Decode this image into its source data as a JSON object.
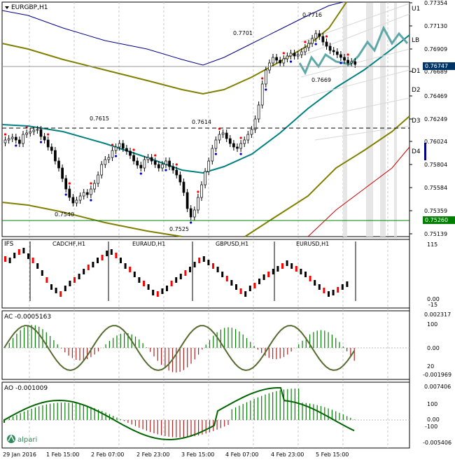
{
  "main_panel": {
    "symbol_label": "EURGBP,H1",
    "price_scale": [
      "0.77354",
      "0.77130",
      "0.76909",
      "0.76689",
      "0.76469",
      "0.76249",
      "0.76024",
      "0.75804",
      "0.75584",
      "0.75359",
      "0.75139"
    ],
    "current_price": "0.76747",
    "level_price": "0.75260",
    "level_labels": [
      "U1",
      "LB",
      "D1",
      "D2",
      "D3",
      "D4"
    ],
    "price_annotations": [
      "0.7716",
      "0.7701",
      "0.7669",
      "0.7615",
      "0.7614",
      "0.7540",
      "0.7525"
    ]
  },
  "ifs_panel": {
    "label": "IFS",
    "sub_symbols": [
      "CADCHF,H1",
      "EURAUD,H1",
      "GBPUSD,H1",
      "EURUSD,H1"
    ],
    "scale": [
      "115",
      "0.00",
      "-15"
    ]
  },
  "ac_panel": {
    "label": "AC -0.0005163",
    "scale": [
      "0.002317",
      "100",
      "0.00",
      "20",
      "-0.001969"
    ]
  },
  "ao_panel": {
    "label": "AO -0.001009",
    "scale": [
      "0.007406",
      "100",
      "0.00",
      "-100",
      "-0.005406"
    ]
  },
  "time_axis": [
    "29 Jan 2016",
    "1 Feb 15:00",
    "2 Feb 07:00",
    "2 Feb 23:00",
    "3 Feb 15:00",
    "4 Feb 07:00",
    "4 Feb 23:00",
    "5 Feb 15:00"
  ],
  "watermark": "alpari",
  "colors": {
    "grid": "#c8c8c8",
    "bull": "#000000",
    "bear": "#ff0000",
    "band_outer": "#808000",
    "band_inner_blue": "#00008b",
    "ma": "#008080",
    "level_line": "#008000",
    "price_box": "#003366",
    "histogram_up": "#008000",
    "histogram_down": "#b22222",
    "forecast": "#5fa8a8"
  }
}
